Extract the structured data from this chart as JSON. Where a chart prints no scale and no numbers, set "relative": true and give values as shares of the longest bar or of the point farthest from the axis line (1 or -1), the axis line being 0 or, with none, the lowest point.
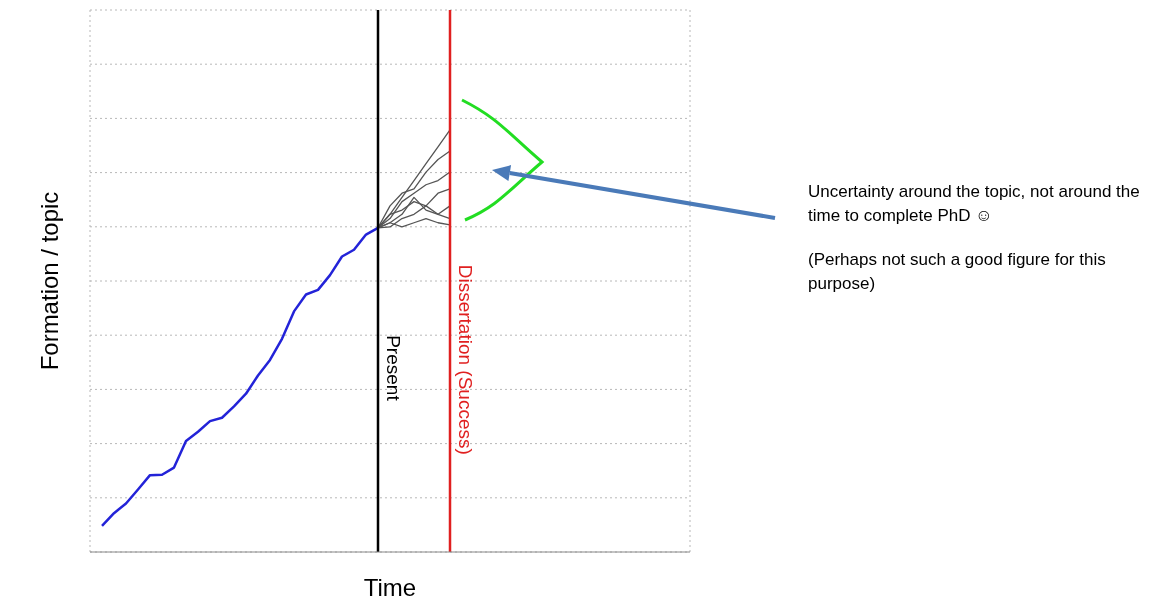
{
  "chart_data": {
    "type": "line",
    "relative": true,
    "xlabel": "Time",
    "ylabel": "Formation / topic",
    "grid": true,
    "marker": "none",
    "line_style": "solid",
    "categories": [
      null,
      null,
      null,
      null,
      null,
      null,
      null,
      null,
      null,
      null,
      null,
      null,
      null,
      null,
      null,
      null,
      null,
      null,
      null,
      null,
      null,
      null,
      null,
      null,
      null,
      null,
      null,
      null,
      null,
      null,
      null,
      null,
      null,
      null,
      null,
      null,
      null,
      null,
      null,
      null,
      null,
      null,
      null,
      null,
      null,
      null,
      null,
      null,
      null,
      null,
      null
    ],
    "series": [
      {
        "color": "#2323d8",
        "values": [
          null,
          0.062,
          0.092,
          0.115,
          0.148,
          0.182,
          0.183,
          0.2,
          0.263,
          0.285,
          0.31,
          0.318,
          0.345,
          0.375,
          0.418,
          0.455,
          0.505,
          0.57,
          0.61,
          0.621,
          0.656,
          0.7,
          0.716,
          0.752,
          0.768,
          null,
          null,
          null,
          null,
          null,
          null,
          null,
          null,
          null,
          null,
          null,
          null,
          null,
          null,
          null,
          null,
          null,
          null,
          null,
          null,
          null,
          null,
          null,
          null,
          null,
          null
        ]
      },
      {
        "color": "#555555",
        "values": [
          null,
          null,
          null,
          null,
          null,
          null,
          null,
          null,
          null,
          null,
          null,
          null,
          null,
          null,
          null,
          null,
          null,
          null,
          null,
          null,
          null,
          null,
          null,
          null,
          0.768,
          0.8,
          0.84,
          0.88,
          0.92,
          0.96,
          1.0,
          null,
          null,
          null,
          null,
          null,
          null,
          null,
          null,
          null,
          null,
          null,
          null,
          null,
          null,
          null,
          null,
          null,
          null,
          null,
          null
        ]
      },
      {
        "color": "#555555",
        "values": [
          null,
          null,
          null,
          null,
          null,
          null,
          null,
          null,
          null,
          null,
          null,
          null,
          null,
          null,
          null,
          null,
          null,
          null,
          null,
          null,
          null,
          null,
          null,
          null,
          0.768,
          0.82,
          0.85,
          0.86,
          0.9,
          0.93,
          0.95,
          null,
          null,
          null,
          null,
          null,
          null,
          null,
          null,
          null,
          null,
          null,
          null,
          null,
          null,
          null,
          null,
          null,
          null,
          null,
          null
        ]
      },
      {
        "color": "#555555",
        "values": [
          null,
          null,
          null,
          null,
          null,
          null,
          null,
          null,
          null,
          null,
          null,
          null,
          null,
          null,
          null,
          null,
          null,
          null,
          null,
          null,
          null,
          null,
          null,
          null,
          0.768,
          0.79,
          0.83,
          0.85,
          0.87,
          0.88,
          0.9,
          null,
          null,
          null,
          null,
          null,
          null,
          null,
          null,
          null,
          null,
          null,
          null,
          null,
          null,
          null,
          null,
          null,
          null,
          null,
          null
        ]
      },
      {
        "color": "#555555",
        "values": [
          null,
          null,
          null,
          null,
          null,
          null,
          null,
          null,
          null,
          null,
          null,
          null,
          null,
          null,
          null,
          null,
          null,
          null,
          null,
          null,
          null,
          null,
          null,
          null,
          0.768,
          0.8,
          0.81,
          0.83,
          0.82,
          0.85,
          0.86,
          null,
          null,
          null,
          null,
          null,
          null,
          null,
          null,
          null,
          null,
          null,
          null,
          null,
          null,
          null,
          null,
          null,
          null,
          null,
          null
        ]
      },
      {
        "color": "#555555",
        "values": [
          null,
          null,
          null,
          null,
          null,
          null,
          null,
          null,
          null,
          null,
          null,
          null,
          null,
          null,
          null,
          null,
          null,
          null,
          null,
          null,
          null,
          null,
          null,
          null,
          0.768,
          0.78,
          0.8,
          0.84,
          0.81,
          0.8,
          0.82,
          null,
          null,
          null,
          null,
          null,
          null,
          null,
          null,
          null,
          null,
          null,
          null,
          null,
          null,
          null,
          null,
          null,
          null,
          null,
          null
        ]
      },
      {
        "color": "#555555",
        "values": [
          null,
          null,
          null,
          null,
          null,
          null,
          null,
          null,
          null,
          null,
          null,
          null,
          null,
          null,
          null,
          null,
          null,
          null,
          null,
          null,
          null,
          null,
          null,
          null,
          0.768,
          0.77,
          0.79,
          0.8,
          0.82,
          0.8,
          0.79,
          null,
          null,
          null,
          null,
          null,
          null,
          null,
          null,
          null,
          null,
          null,
          null,
          null,
          null,
          null,
          null,
          null,
          null,
          null,
          null
        ]
      },
      {
        "color": "#555555",
        "values": [
          null,
          null,
          null,
          null,
          null,
          null,
          null,
          null,
          null,
          null,
          null,
          null,
          null,
          null,
          null,
          null,
          null,
          null,
          null,
          null,
          null,
          null,
          null,
          null,
          0.768,
          0.78,
          0.77,
          0.78,
          0.79,
          0.78,
          0.775,
          null,
          null,
          null,
          null,
          null,
          null,
          null,
          null,
          null,
          null,
          null,
          null,
          null,
          null,
          null,
          null,
          null,
          null,
          null,
          null
        ]
      }
    ],
    "ref_lines": [
      {
        "axis": "x",
        "label": "Present",
        "color": "#000000"
      },
      {
        "axis": "x",
        "label": "Dissertation (Success)",
        "color": "#e02020"
      }
    ],
    "annotations": [
      "Uncertainty around the topic, not around the time to complete PhD ☺",
      "(Perhaps not such a good figure for this purpose)"
    ]
  }
}
